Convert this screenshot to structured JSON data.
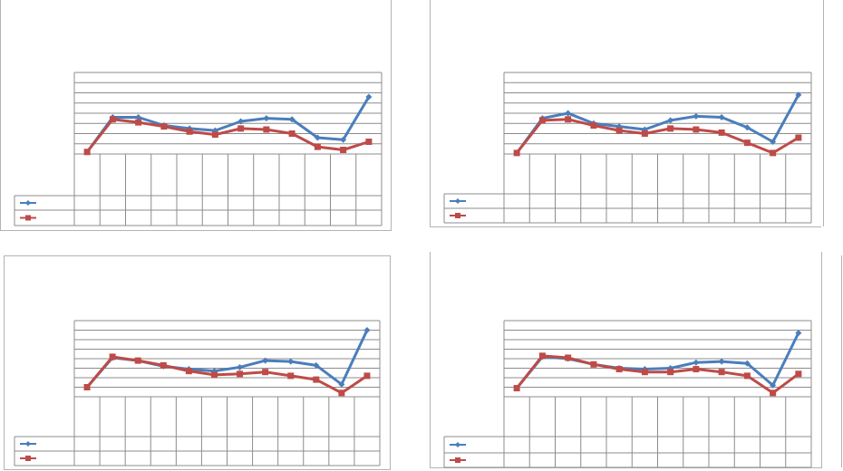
{
  "colors": {
    "series1": "#4a7ebb",
    "series2": "#be4b48",
    "grid": "#8c8c8c",
    "frame": "#b3b3b3"
  },
  "chart_data": [
    {
      "type": "line",
      "categories": [
        "",
        "",
        "",
        "",
        "",
        "",
        "",
        "",
        "",
        "",
        "",
        ""
      ],
      "ylim": [
        0,
        8
      ],
      "grid": true,
      "legend": "data-table",
      "series": [
        {
          "marker": "diamond",
          "values": [
            0.2,
            3.6,
            3.6,
            2.8,
            2.5,
            2.3,
            3.2,
            3.5,
            3.4,
            1.6,
            1.4,
            5.6
          ]
        },
        {
          "marker": "square",
          "values": [
            0.2,
            3.4,
            3.1,
            2.7,
            2.2,
            1.9,
            2.5,
            2.4,
            2.0,
            0.7,
            0.4,
            1.2
          ]
        }
      ]
    },
    {
      "type": "line",
      "categories": [
        "",
        "",
        "",
        "",
        "",
        "",
        "",
        "",
        "",
        "",
        "",
        ""
      ],
      "ylim": [
        0,
        8
      ],
      "grid": true,
      "legend": "data-table",
      "series": [
        {
          "marker": "diamond",
          "values": [
            0.1,
            3.5,
            4.0,
            3.0,
            2.7,
            2.4,
            3.3,
            3.7,
            3.6,
            2.6,
            1.2,
            5.8
          ]
        },
        {
          "marker": "square",
          "values": [
            0.1,
            3.3,
            3.4,
            2.8,
            2.3,
            2.0,
            2.5,
            2.4,
            2.1,
            1.1,
            0.1,
            1.6
          ]
        }
      ]
    },
    {
      "type": "line",
      "categories": [
        "",
        "",
        "",
        "",
        "",
        "",
        "",
        "",
        "",
        "",
        "",
        ""
      ],
      "ylim": [
        0,
        8
      ],
      "grid": true,
      "legend": "data-table",
      "series": [
        {
          "marker": "diamond",
          "values": [
            1.0,
            4.1,
            3.8,
            3.2,
            2.9,
            2.7,
            3.1,
            3.8,
            3.7,
            3.3,
            1.3,
            7.0
          ]
        },
        {
          "marker": "square",
          "values": [
            1.0,
            4.2,
            3.8,
            3.3,
            2.7,
            2.3,
            2.4,
            2.6,
            2.2,
            1.8,
            0.4,
            2.2
          ]
        }
      ]
    },
    {
      "type": "line",
      "categories": [
        "",
        "",
        "",
        "",
        "",
        "",
        "",
        "",
        "",
        "",
        "",
        ""
      ],
      "ylim": [
        0,
        8
      ],
      "grid": true,
      "legend": "data-table",
      "series": [
        {
          "marker": "diamond",
          "values": [
            0.9,
            4.2,
            4.0,
            3.4,
            3.0,
            2.9,
            3.0,
            3.6,
            3.7,
            3.5,
            1.2,
            6.7
          ]
        },
        {
          "marker": "square",
          "values": [
            0.9,
            4.3,
            4.1,
            3.4,
            2.9,
            2.6,
            2.6,
            2.9,
            2.6,
            2.2,
            0.4,
            2.4
          ]
        }
      ]
    }
  ]
}
